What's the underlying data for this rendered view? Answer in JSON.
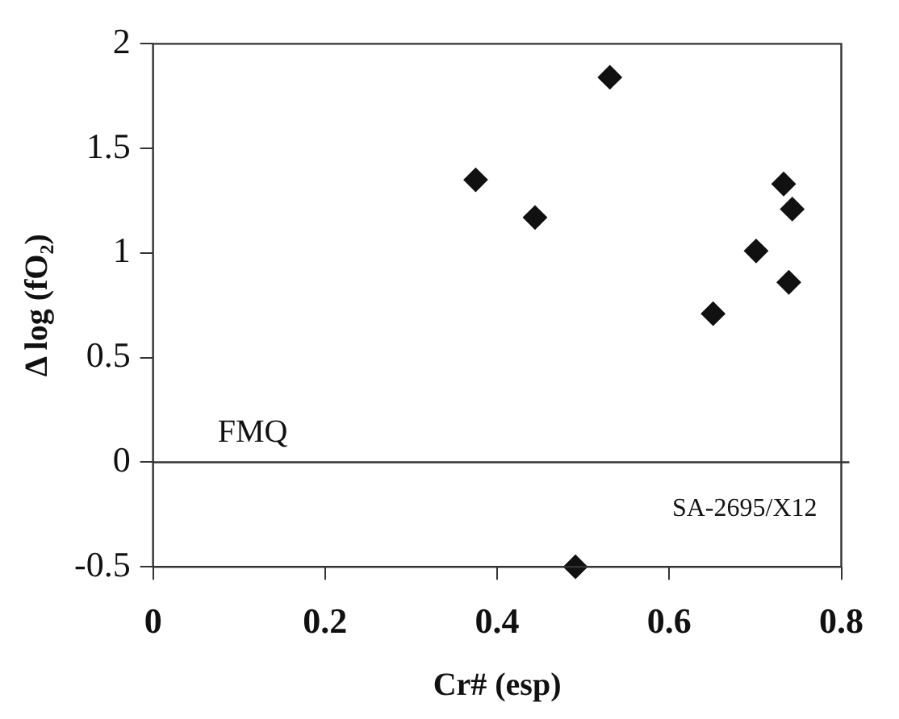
{
  "chart_data": {
    "type": "scatter",
    "xlabel": "Cr# (esp)",
    "ylabel": "Δ log (fO₂)",
    "x": [
      0.375,
      0.444,
      0.531,
      0.491,
      0.651,
      0.701,
      0.733,
      0.743,
      0.739
    ],
    "series": [
      {
        "color": "#111111",
        "values": [
          1.35,
          1.17,
          1.84,
          -0.5,
          0.71,
          1.01,
          1.33,
          1.21,
          0.86
        ]
      }
    ],
    "xlim": [
      0,
      0.8
    ],
    "xticks": [
      0,
      0.2,
      0.4,
      0.6,
      0.8
    ],
    "ylim": [
      -0.5,
      2
    ],
    "yticks": [
      -0.5,
      0,
      0.5,
      1,
      1.5,
      2
    ],
    "ref_lines": [
      {
        "axis": "y",
        "value": 0,
        "label": "FMQ"
      }
    ],
    "annotations": [
      "SA-2695/X12"
    ],
    "marker": "diamond",
    "grid": false,
    "legend": false
  }
}
